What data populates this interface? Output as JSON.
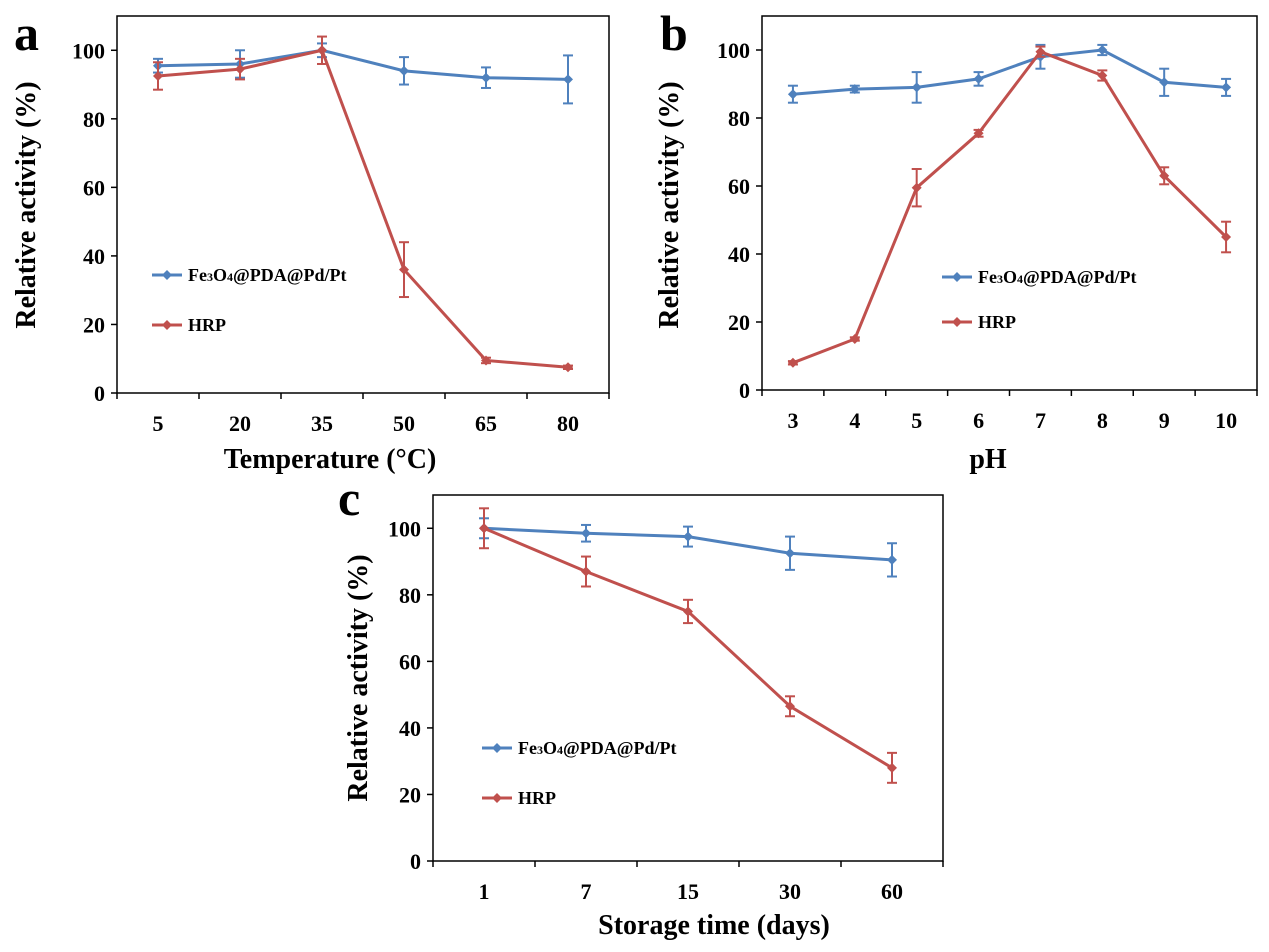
{
  "colors": {
    "immobilized": "#4F81BD",
    "hrp": "#C0504D"
  },
  "chart_data": [
    {
      "panel": "a",
      "type": "line",
      "xlabel": "Temperature (°C)",
      "ylabel": "Relative activity (%)",
      "categories": [
        "5",
        "20",
        "35",
        "50",
        "65",
        "80"
      ],
      "ylim": [
        0,
        110
      ],
      "yticks": [
        0,
        20,
        40,
        60,
        80,
        100
      ],
      "grid": false,
      "legend": "middle-left",
      "series": [
        {
          "name": "Fe3O4@PDA@Pd/Pt",
          "legend_parts": [
            "Fe",
            "3",
            "O",
            "4",
            "@PDA@Pd/Pt"
          ],
          "color": "#4F81BD",
          "values": [
            95.5,
            96,
            100,
            94,
            92,
            91.5
          ],
          "errors": [
            2,
            4,
            2,
            4,
            3,
            7
          ]
        },
        {
          "name": "HRP",
          "legend_parts": [
            "HRP"
          ],
          "color": "#C0504D",
          "values": [
            92.5,
            94.5,
            100,
            36,
            9.5,
            7.5
          ],
          "errors": [
            4,
            3,
            4,
            8,
            0.8,
            0.5
          ]
        }
      ]
    },
    {
      "panel": "b",
      "type": "line",
      "xlabel": "pH",
      "ylabel": "Relative activity (%)",
      "categories": [
        "3",
        "4",
        "5",
        "6",
        "7",
        "8",
        "9",
        "10"
      ],
      "ylim": [
        0,
        110
      ],
      "yticks": [
        0,
        20,
        40,
        60,
        80,
        100
      ],
      "grid": false,
      "legend": "lower-middle",
      "series": [
        {
          "name": "Fe3O4@PDA@Pd/Pt",
          "legend_parts": [
            "Fe",
            "3",
            "O",
            "4",
            "@PDA@Pd/Pt"
          ],
          "color": "#4F81BD",
          "values": [
            87,
            88.5,
            89,
            91.5,
            98,
            100,
            90.5,
            89
          ],
          "errors": [
            2.5,
            1,
            4.5,
            2,
            3.5,
            1.5,
            4,
            2.5
          ]
        },
        {
          "name": "HRP",
          "legend_parts": [
            "HRP"
          ],
          "color": "#C0504D",
          "values": [
            8,
            15,
            59.5,
            75.5,
            99.5,
            92.5,
            63,
            45
          ],
          "errors": [
            0.5,
            0.5,
            5.5,
            1,
            1.5,
            1.5,
            2.5,
            4.5
          ]
        }
      ]
    },
    {
      "panel": "c",
      "type": "line",
      "xlabel": "Storage time (days)",
      "ylabel": "Relative activity (%)",
      "categories": [
        "1",
        "7",
        "15",
        "30",
        "60"
      ],
      "ylim": [
        0,
        110
      ],
      "yticks": [
        0,
        20,
        40,
        60,
        80,
        100
      ],
      "grid": false,
      "legend": "lower-left",
      "series": [
        {
          "name": "Fe3O4@PDA@Pd/Pt",
          "legend_parts": [
            "Fe",
            "3",
            "O",
            "4",
            "@PDA@Pd/Pt"
          ],
          "color": "#4F81BD",
          "values": [
            100,
            98.5,
            97.5,
            92.5,
            90.5
          ],
          "errors": [
            3,
            2.5,
            3,
            5,
            5
          ]
        },
        {
          "name": "HRP",
          "legend_parts": [
            "HRP"
          ],
          "color": "#C0504D",
          "values": [
            100,
            87,
            75,
            46.5,
            28
          ],
          "errors": [
            6,
            4.5,
            3.5,
            3,
            4.5
          ]
        }
      ]
    }
  ]
}
